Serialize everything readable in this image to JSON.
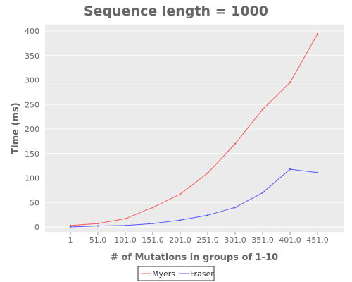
{
  "chart_data": {
    "type": "line",
    "title": "Sequence length = 1000",
    "xlabel": "# of Mutations in groups of 1-10",
    "ylabel": "Time (ms)",
    "categories": [
      "1",
      "51.0",
      "101.0",
      "151.0",
      "201.0",
      "251.0",
      "301.0",
      "351.0",
      "401.0",
      "451.0"
    ],
    "y_ticks": [
      0,
      50,
      100,
      150,
      200,
      250,
      300,
      350,
      400
    ],
    "ylim": [
      0,
      400
    ],
    "grid": "horizontal",
    "legend_position": "bottom",
    "series": [
      {
        "name": "Myers",
        "color": "#ff5555",
        "values": [
          3,
          7,
          17,
          40,
          67,
          110,
          170,
          240,
          295,
          394
        ]
      },
      {
        "name": "Fraser",
        "color": "#5555ff",
        "values": [
          0,
          2,
          3,
          7,
          14,
          24,
          40,
          70,
          118,
          111
        ]
      }
    ],
    "colors": {
      "plot_background": "#ebebeb",
      "grid": "#ffffff",
      "text": "#666666"
    }
  }
}
